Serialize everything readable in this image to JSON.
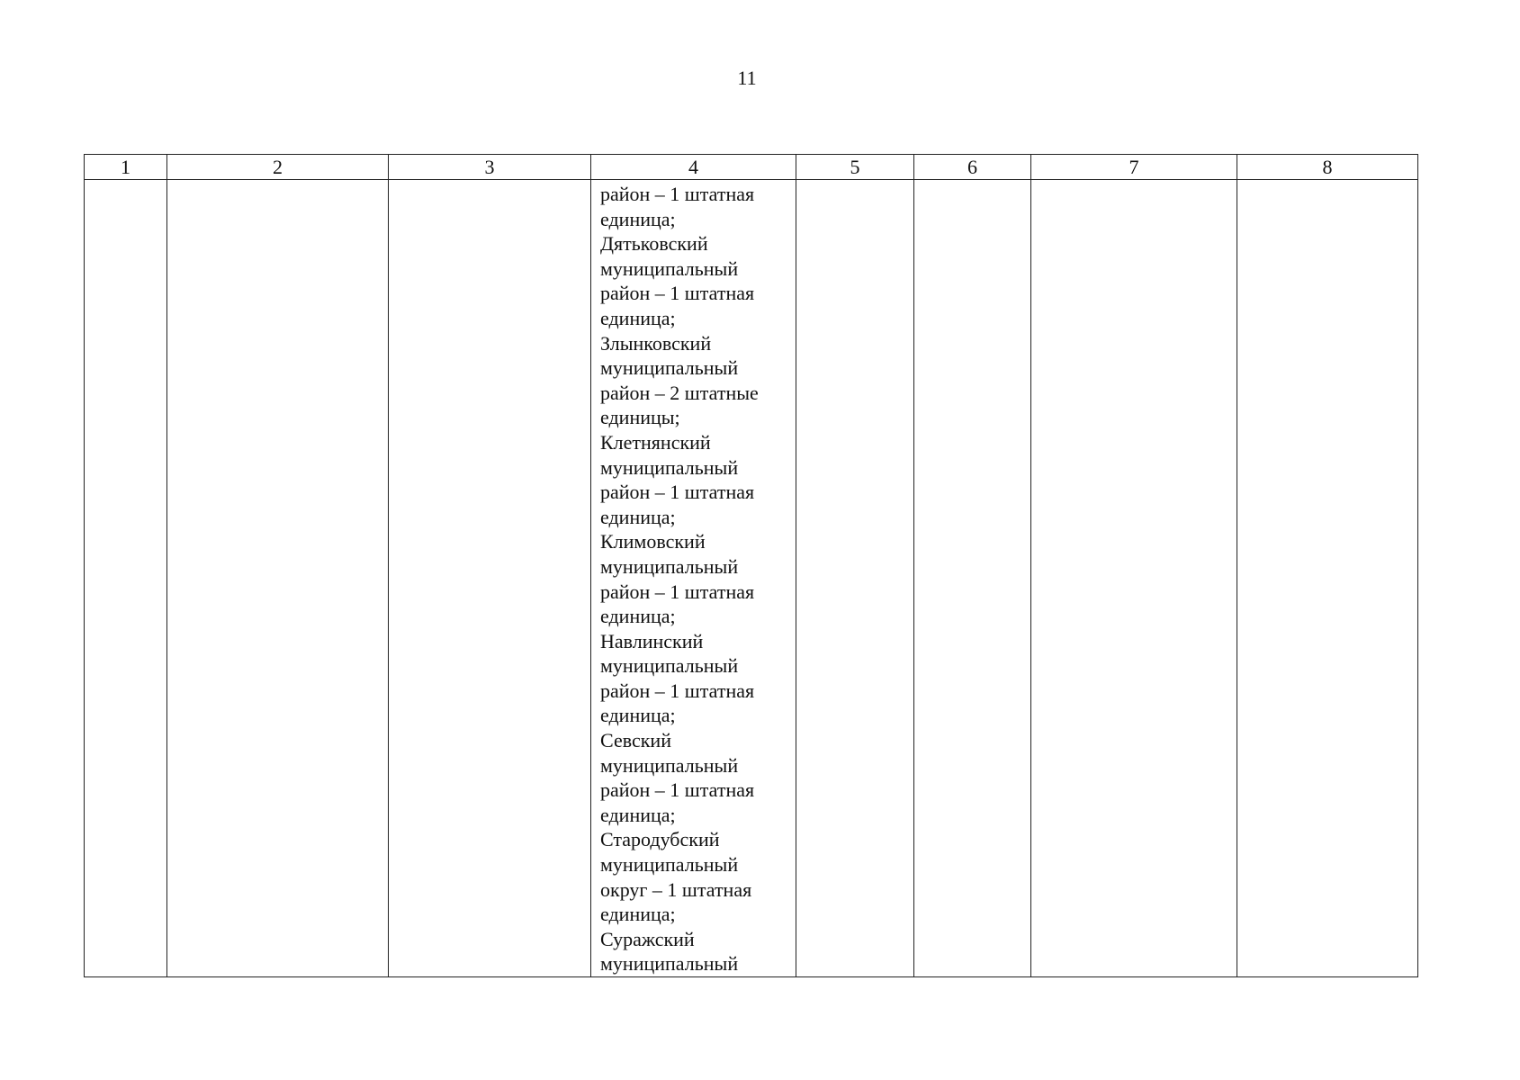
{
  "page_number": "11",
  "table": {
    "headers": [
      "1",
      "2",
      "3",
      "4",
      "5",
      "6",
      "7",
      "8"
    ],
    "column4_lines": [
      "район – 1 штатная",
      "единица;",
      "Дятьковский",
      "муниципальный",
      "район – 1 штатная",
      "единица;",
      "Злынковский",
      "муниципальный",
      "район – 2 штатные",
      "единицы;",
      "Клетнянский",
      "муниципальный",
      "район – 1 штатная",
      "единица;",
      "Климовский",
      "муниципальный",
      "район – 1 штатная",
      "единица;",
      "Навлинский",
      "муниципальный",
      "район – 1 штатная",
      "единица;",
      "Севский",
      "муниципальный",
      "район – 1 штатная",
      "единица;",
      "Стародубский",
      "муниципальный",
      "округ – 1 штатная",
      "единица;",
      "Суражский",
      "муниципальный"
    ]
  }
}
